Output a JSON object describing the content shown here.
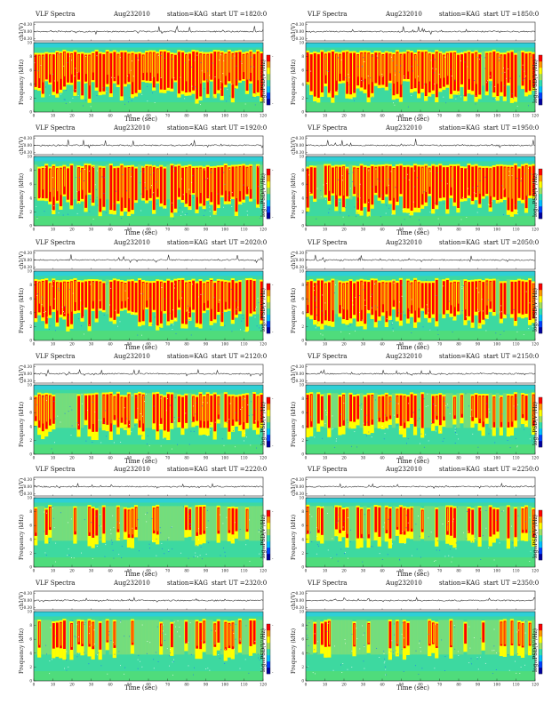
{
  "figure": {
    "title": "VLF Spectra",
    "date": "Aug232010",
    "station": "station=KAG",
    "start_prefix": "start  UT =",
    "amp_ylabel": "ch1(V)",
    "spec_ylabel": "Frequency (kHz)",
    "xlabel": "Time (sec)",
    "colorbar_label": "log₁₀PSD(V²/Hz)"
  },
  "colors": {
    "colorbar": [
      "#0000a0",
      "#0040ff",
      "#00c0ff",
      "#30e0b0",
      "#a0e060",
      "#ffff00",
      "#ff9900",
      "#ff0000"
    ],
    "spectrogram_base": "#3dd9a0",
    "band_top": "#2ecfd6"
  },
  "panels": [
    {
      "ut": "1820:0",
      "activity": 0.95
    },
    {
      "ut": "1850:0",
      "activity": 0.92
    },
    {
      "ut": "1920:0",
      "activity": 0.95
    },
    {
      "ut": "1950:0",
      "activity": 0.92
    },
    {
      "ut": "2020:0",
      "activity": 0.93
    },
    {
      "ut": "2050:0",
      "activity": 0.88
    },
    {
      "ut": "2120:0",
      "activity": 0.72
    },
    {
      "ut": "2150:0",
      "activity": 0.62
    },
    {
      "ut": "2220:0",
      "activity": 0.52
    },
    {
      "ut": "2250:0",
      "activity": 0.55
    },
    {
      "ut": "2320:0",
      "activity": 0.48
    },
    {
      "ut": "2350:0",
      "activity": 0.42
    }
  ],
  "chart_data": {
    "type": "heatmap",
    "xlim": [
      0,
      120
    ],
    "x_ticks": [
      0,
      10,
      20,
      30,
      40,
      50,
      60,
      70,
      80,
      90,
      100,
      110,
      120
    ],
    "spectrogram_ylim": [
      0,
      10
    ],
    "spectrogram_y_ticks": [
      0,
      2,
      4,
      6,
      8,
      10
    ],
    "amplitude_ylim": [
      -0.3,
      0.3
    ],
    "amplitude_y_ticks": [
      -0.3,
      0.0,
      0.3
    ],
    "amplitude_tick_labels": [
      "0.30",
      "0.00",
      "-0.30"
    ],
    "colorbar_ticks": [
      "-",
      "-"
    ]
  }
}
